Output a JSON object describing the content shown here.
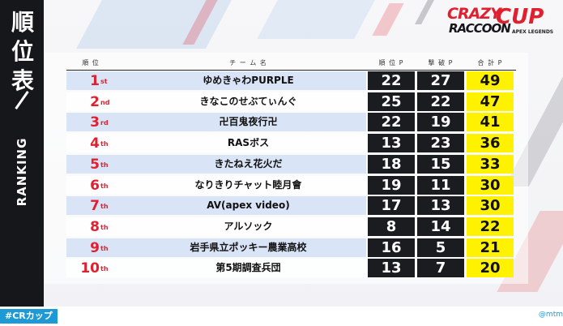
{
  "sidebar": {
    "title": "順位表",
    "subtitle": "RANKING"
  },
  "logo": {
    "line1": "CRAZY",
    "line2": "RACCOON",
    "line3": "CUP",
    "sub": "APEX LEGENDS"
  },
  "table": {
    "headers": {
      "rank": "順 位",
      "team": "チ ー ム 名",
      "placement": "順 位 P",
      "kills": "撃 破 P",
      "total": "合 計 P"
    },
    "rows": [
      {
        "rank": "1",
        "suffix": "st",
        "team": "ゆめきゃわPURPLE",
        "placement": "22",
        "kills": "27",
        "total": "49"
      },
      {
        "rank": "2",
        "suffix": "nd",
        "team": "きなこのせぶてぃんぐ",
        "placement": "25",
        "kills": "22",
        "total": "47"
      },
      {
        "rank": "3",
        "suffix": "rd",
        "team": "卍百鬼夜行卍",
        "placement": "22",
        "kills": "19",
        "total": "41"
      },
      {
        "rank": "4",
        "suffix": "th",
        "team": "RASボス",
        "placement": "13",
        "kills": "23",
        "total": "36"
      },
      {
        "rank": "5",
        "suffix": "th",
        "team": "きたねえ花火だ",
        "placement": "18",
        "kills": "15",
        "total": "33"
      },
      {
        "rank": "6",
        "suffix": "th",
        "team": "なりきりチャット睦月會",
        "placement": "19",
        "kills": "11",
        "total": "30"
      },
      {
        "rank": "7",
        "suffix": "th",
        "team": "AV(apex video)",
        "placement": "17",
        "kills": "13",
        "total": "30"
      },
      {
        "rank": "8",
        "suffix": "th",
        "team": "アルソック",
        "placement": "8",
        "kills": "14",
        "total": "22"
      },
      {
        "rank": "9",
        "suffix": "th",
        "team": "岩手県立ポッキー農業高校",
        "placement": "16",
        "kills": "5",
        "total": "21"
      },
      {
        "rank": "10",
        "suffix": "th",
        "team": "第5期調査兵団",
        "placement": "13",
        "kills": "7",
        "total": "20"
      }
    ]
  },
  "footer": {
    "hashtag": "#CRカップ",
    "credit": "@mtm"
  },
  "colors": {
    "accent": "#e0202e",
    "total_bg": "#fff200",
    "cell_bg": "#1b1c20",
    "hashtag_bg": "#1d9ad6"
  }
}
